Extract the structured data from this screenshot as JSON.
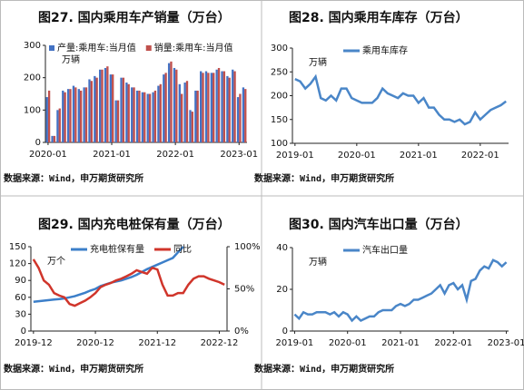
{
  "chart_data": [
    {
      "type": "bar",
      "title": "图27. 国内乘用车产销量（万台）",
      "unit": "万辆",
      "source": "数据来源：Wind，申万期货研究所",
      "categories": [
        "2020-01",
        null,
        null,
        null,
        null,
        null,
        null,
        null,
        null,
        null,
        null,
        null,
        "2021-01",
        null,
        null,
        null,
        null,
        null,
        null,
        null,
        null,
        null,
        null,
        null,
        "2022-01",
        null,
        null,
        null,
        null,
        null,
        null,
        null,
        null,
        null,
        null,
        null,
        "2023-01",
        null
      ],
      "series": [
        {
          "name": "产量:乘用车:当月值",
          "color": "#4472c4",
          "values": [
            140,
            20,
            100,
            160,
            165,
            175,
            165,
            170,
            195,
            205,
            225,
            230,
            210,
            130,
            200,
            185,
            170,
            160,
            155,
            150,
            155,
            175,
            210,
            245,
            230,
            180,
            185,
            100,
            160,
            220,
            220,
            215,
            225,
            220,
            205,
            225,
            140,
            170
          ]
        },
        {
          "name": "销量:乘用车:当月值",
          "color": "#c0504d",
          "values": [
            160,
            20,
            105,
            155,
            165,
            170,
            160,
            170,
            190,
            200,
            225,
            235,
            210,
            130,
            200,
            180,
            170,
            160,
            155,
            150,
            160,
            180,
            215,
            250,
            225,
            150,
            190,
            95,
            160,
            215,
            215,
            215,
            230,
            220,
            200,
            220,
            150,
            165
          ]
        }
      ],
      "ylim": [
        0,
        300
      ],
      "yticks": [
        0,
        100,
        200,
        300
      ],
      "legend": "top"
    },
    {
      "type": "line",
      "title": "图28. 国内乘用车库存（万台）",
      "unit": "万辆",
      "source": "数据来源：Wind，申万期货研究所",
      "categories": [
        "2019-01",
        null,
        null,
        null,
        null,
        null,
        null,
        null,
        null,
        null,
        null,
        null,
        "2020-01",
        null,
        null,
        null,
        null,
        null,
        null,
        null,
        null,
        null,
        null,
        null,
        "2021-01",
        null,
        null,
        null,
        null,
        null,
        null,
        null,
        null,
        null,
        null,
        null,
        "2022-01",
        null,
        null,
        null,
        null,
        null
      ],
      "series": [
        {
          "name": "乘用车库存",
          "color": "#4a86c8",
          "values": [
            235,
            230,
            215,
            225,
            240,
            195,
            190,
            200,
            190,
            215,
            215,
            195,
            190,
            185,
            185,
            185,
            195,
            215,
            205,
            200,
            195,
            205,
            200,
            200,
            185,
            195,
            175,
            175,
            160,
            150,
            150,
            145,
            150,
            140,
            145,
            165,
            150,
            160,
            170,
            175,
            180,
            188
          ]
        }
      ],
      "ylim": [
        100,
        300
      ],
      "yticks": [
        100,
        150,
        200,
        250,
        300
      ],
      "legend": "top"
    },
    {
      "type": "line",
      "title": "图29. 国内充电桩保有量（万台）",
      "unit": "万个",
      "source": "数据来源：Wind，申万期货研究所",
      "categories": [
        "2019-12",
        null,
        null,
        null,
        null,
        null,
        null,
        null,
        null,
        null,
        null,
        null,
        "2020-12",
        null,
        null,
        null,
        null,
        null,
        null,
        null,
        null,
        null,
        null,
        null,
        "2021-12",
        null,
        null,
        null,
        null,
        null,
        null,
        null,
        null,
        null,
        null,
        null,
        "2022-12",
        null
      ],
      "series": [
        {
          "name": "充电桩保有量",
          "color": "#3c7fc9",
          "values": [
            52,
            53,
            54,
            55,
            56,
            57,
            58,
            60,
            62,
            65,
            68,
            72,
            75,
            80,
            83,
            86,
            88,
            90,
            93,
            96,
            100,
            105,
            110,
            114,
            118,
            122,
            126,
            130,
            140,
            150,
            null,
            null,
            null,
            null,
            null,
            null,
            null,
            null
          ]
        },
        {
          "name": "同比",
          "color": "#d0352b",
          "axis": "y2",
          "values": [
            85,
            75,
            60,
            55,
            45,
            42,
            40,
            32,
            30,
            33,
            36,
            40,
            45,
            52,
            55,
            57,
            60,
            62,
            65,
            68,
            72,
            70,
            68,
            75,
            73,
            55,
            42,
            42,
            45,
            45,
            55,
            62,
            65,
            65,
            62,
            60,
            58,
            55
          ]
        }
      ],
      "ylim": [
        0,
        150
      ],
      "yticks": [
        0,
        30,
        60,
        90,
        120,
        150
      ],
      "y2lim": [
        0,
        100
      ],
      "y2ticks": [
        {
          "value": 0,
          "label": "0%"
        },
        {
          "value": 50,
          "label": "50%"
        },
        {
          "value": 100,
          "label": "100%"
        }
      ],
      "legend": "top"
    },
    {
      "type": "line",
      "title": "图30. 国内汽车出口量（万台）",
      "unit": "万辆",
      "source": "数据来源：Wind，申万期货研究所",
      "categories": [
        "2019-01",
        null,
        null,
        null,
        null,
        null,
        null,
        null,
        null,
        null,
        null,
        null,
        "2020-01",
        null,
        null,
        null,
        null,
        null,
        null,
        null,
        null,
        null,
        null,
        null,
        "2021-01",
        null,
        null,
        null,
        null,
        null,
        null,
        null,
        null,
        null,
        null,
        null,
        "2022-01",
        null,
        null,
        null,
        null,
        null,
        null,
        null,
        null,
        null,
        null,
        null,
        "2023-01"
      ],
      "series": [
        {
          "name": "汽车出口量",
          "color": "#4a86c8",
          "values": [
            8,
            6,
            9,
            8,
            8,
            9,
            9,
            9,
            8,
            9,
            7,
            9,
            8,
            5,
            7,
            5,
            6,
            7,
            7,
            9,
            10,
            10,
            10,
            12,
            13,
            12,
            13,
            15,
            15,
            16,
            17,
            18,
            20,
            22,
            18,
            22,
            23,
            20,
            22,
            15,
            24,
            25,
            29,
            31,
            30,
            34,
            33,
            31,
            33
          ]
        }
      ],
      "ylim": [
        0,
        40
      ],
      "yticks": [
        0,
        20,
        40
      ],
      "legend": "top"
    }
  ]
}
